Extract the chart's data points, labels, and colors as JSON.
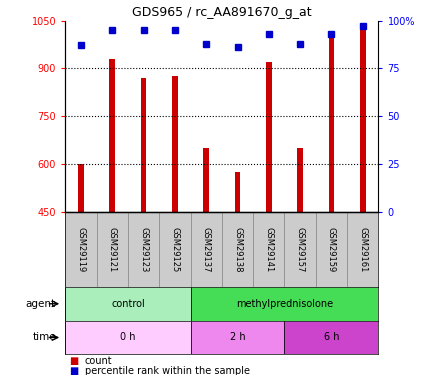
{
  "title": "GDS965 / rc_AA891670_g_at",
  "samples": [
    "GSM29119",
    "GSM29121",
    "GSM29123",
    "GSM29125",
    "GSM29137",
    "GSM29138",
    "GSM29141",
    "GSM29157",
    "GSM29159",
    "GSM29161"
  ],
  "counts": [
    600,
    930,
    870,
    875,
    650,
    575,
    920,
    650,
    1000,
    1040
  ],
  "percentile_ranks": [
    87,
    95,
    95,
    95,
    88,
    86,
    93,
    88,
    93,
    97
  ],
  "ylim_left": [
    450,
    1050
  ],
  "ylim_right": [
    0,
    100
  ],
  "yticks_left": [
    450,
    600,
    750,
    900,
    1050
  ],
  "yticks_right": [
    0,
    25,
    50,
    75,
    100
  ],
  "ytick_labels_right": [
    "0",
    "25",
    "50",
    "75",
    "100%"
  ],
  "bar_color": "#cc0000",
  "dot_color": "#0000cc",
  "agent_groups": [
    {
      "label": "control",
      "start": 0,
      "end": 4,
      "color": "#aaeebb"
    },
    {
      "label": "methylprednisolone",
      "start": 4,
      "end": 10,
      "color": "#44dd55"
    }
  ],
  "time_groups": [
    {
      "label": "0 h",
      "start": 0,
      "end": 4,
      "color": "#ffccff"
    },
    {
      "label": "2 h",
      "start": 4,
      "end": 7,
      "color": "#ee88ee"
    },
    {
      "label": "6 h",
      "start": 7,
      "end": 10,
      "color": "#cc44cc"
    }
  ],
  "legend_count_label": "count",
  "legend_pct_label": "percentile rank within the sample",
  "agent_label": "agent",
  "time_label": "time"
}
